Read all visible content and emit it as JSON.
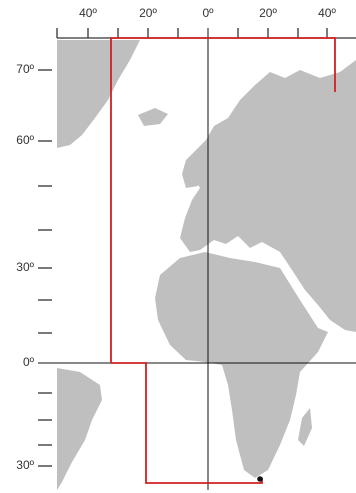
{
  "x_labels": [
    "40º",
    "20º",
    "0º",
    "20º",
    "40º"
  ],
  "y_labels": [
    "70º",
    "60º",
    "30º",
    "0º",
    "30º"
  ]
}
